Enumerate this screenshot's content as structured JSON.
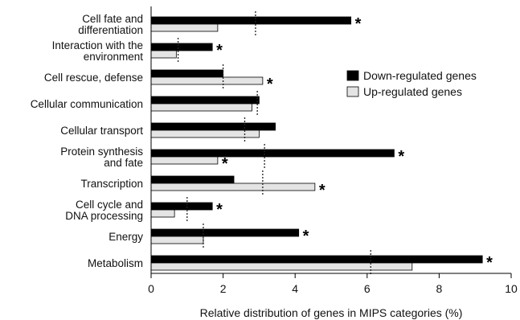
{
  "chart_data": {
    "type": "bar",
    "orientation": "horizontal",
    "categories": [
      "Cell fate and differentiation",
      "Interaction with the environment",
      "Cell rescue, defense",
      "Cellular communication",
      "Cellular transport",
      "Protein synthesis and fate",
      "Transcription",
      "Cell cycle and DNA processing",
      "Energy",
      "Metabolism"
    ],
    "category_lines": [
      [
        "Cell fate and",
        "differentiation"
      ],
      [
        "Interaction with the",
        "environment"
      ],
      [
        "Cell rescue, defense"
      ],
      [
        "Cellular communication"
      ],
      [
        "Cellular transport"
      ],
      [
        "Protein synthesis",
        "and fate"
      ],
      [
        "Transcription"
      ],
      [
        "Cell cycle and",
        "DNA processing"
      ],
      [
        "Energy"
      ],
      [
        "Metabolism"
      ]
    ],
    "series": [
      {
        "name": "Down-regulated genes",
        "color": "#000000",
        "values": [
          5.55,
          1.7,
          2.0,
          3.0,
          3.45,
          6.75,
          2.3,
          1.7,
          4.1,
          9.2
        ],
        "significant": [
          true,
          true,
          false,
          false,
          false,
          true,
          false,
          true,
          true,
          true
        ]
      },
      {
        "name": "Up-regulated genes",
        "color": "#e4e4e4",
        "values": [
          1.85,
          0.7,
          3.1,
          2.8,
          3.0,
          1.85,
          4.55,
          0.65,
          1.45,
          7.25
        ],
        "significant": [
          false,
          false,
          true,
          false,
          false,
          true,
          true,
          false,
          false,
          false
        ]
      }
    ],
    "reference_values": [
      2.9,
      0.75,
      2.0,
      2.95,
      2.6,
      3.15,
      3.1,
      1.0,
      1.45,
      6.1
    ],
    "significance_marker": "*",
    "xlim": [
      0,
      10
    ],
    "xticks": [
      0,
      2,
      4,
      6,
      8,
      10
    ],
    "xlabel": "Relative distribution of genes in MIPS categories (%)",
    "ylabel": "",
    "title": "",
    "legend_position": "right",
    "grid": false
  }
}
